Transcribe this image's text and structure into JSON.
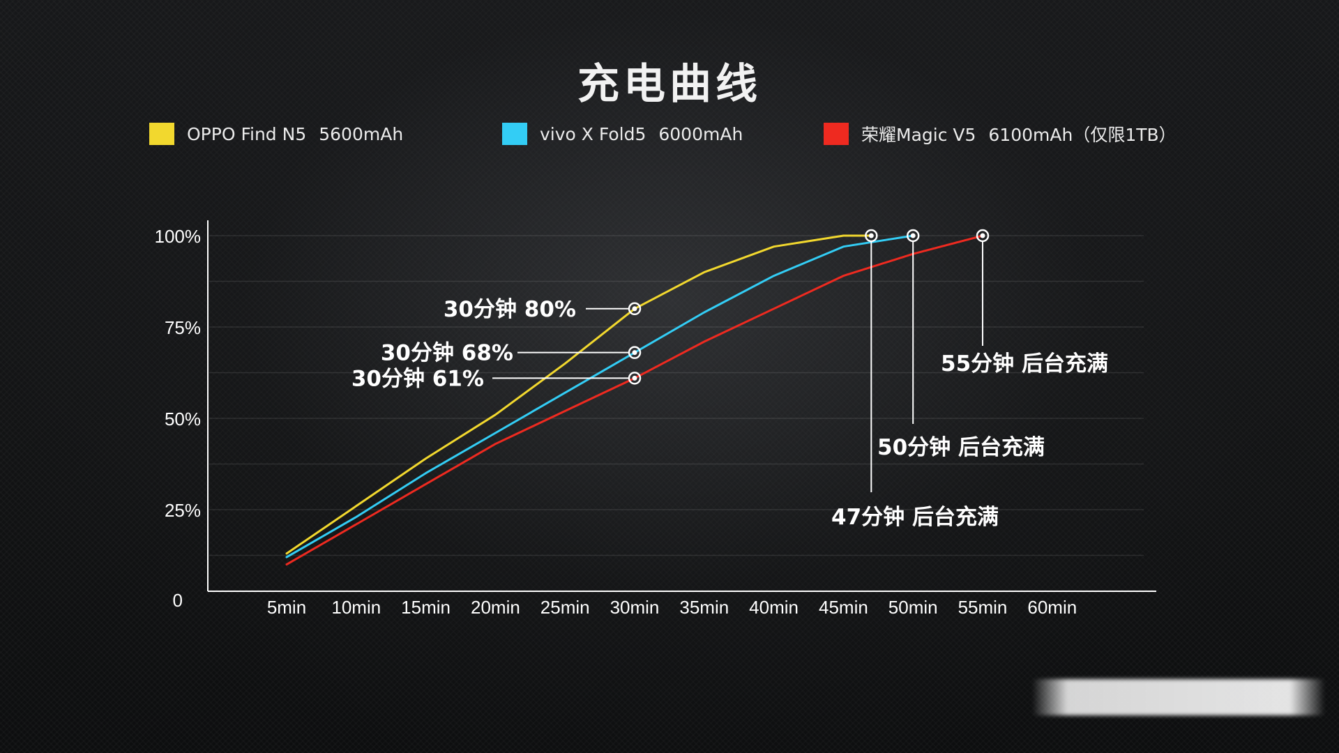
{
  "title": "充电曲线",
  "legend": [
    {
      "name": "OPPO Find N5",
      "capacity": "5600mAh",
      "color": "#f2d82e"
    },
    {
      "name": "vivo X Fold5",
      "capacity": "6000mAh",
      "color": "#33cdf5"
    },
    {
      "name": "荣耀Magic V5",
      "capacity": "6100mAh（仅限1TB）",
      "color": "#ee2a20"
    }
  ],
  "chart_data": {
    "type": "line",
    "title": "充电曲线",
    "xlabel": "",
    "ylabel": "",
    "categories": [
      "5min",
      "10min",
      "15min",
      "20min",
      "25min",
      "30min",
      "35min",
      "40min",
      "45min",
      "50min",
      "55min",
      "60min"
    ],
    "y_ticks": [
      "0",
      "25%",
      "50%",
      "75%",
      "100%"
    ],
    "ylim": [
      0,
      100
    ],
    "grid": true,
    "series": [
      {
        "name": "OPPO Find N5 5600mAh",
        "color": "#f2d82e",
        "x": [
          5,
          10,
          15,
          20,
          25,
          30,
          35,
          40,
          45,
          47
        ],
        "y": [
          13,
          26,
          39,
          51,
          65,
          80,
          90,
          97,
          100,
          100
        ]
      },
      {
        "name": "vivo X Fold5 6000mAh",
        "color": "#33cdf5",
        "x": [
          5,
          10,
          15,
          20,
          25,
          30,
          35,
          40,
          45,
          50
        ],
        "y": [
          12,
          23,
          35,
          46,
          57,
          68,
          79,
          89,
          97,
          100
        ]
      },
      {
        "name": "荣耀Magic V5 6100mAh（仅限1TB）",
        "color": "#ee2a20",
        "x": [
          5,
          10,
          15,
          20,
          25,
          30,
          35,
          40,
          45,
          50,
          55
        ],
        "y": [
          10,
          21,
          32,
          43,
          52,
          61,
          71,
          80,
          89,
          95,
          100
        ]
      }
    ],
    "annotations": [
      {
        "text": "30分钟 80%",
        "x": 30,
        "y": 80
      },
      {
        "text": "30分钟 68%",
        "x": 30,
        "y": 68
      },
      {
        "text": "30分钟 61%",
        "x": 30,
        "y": 61
      },
      {
        "text": "47分钟 后台充满",
        "x": 47,
        "y": 100
      },
      {
        "text": "50分钟 后台充满",
        "x": 50,
        "y": 100
      },
      {
        "text": "55分钟 后台充满",
        "x": 55,
        "y": 100
      }
    ]
  }
}
